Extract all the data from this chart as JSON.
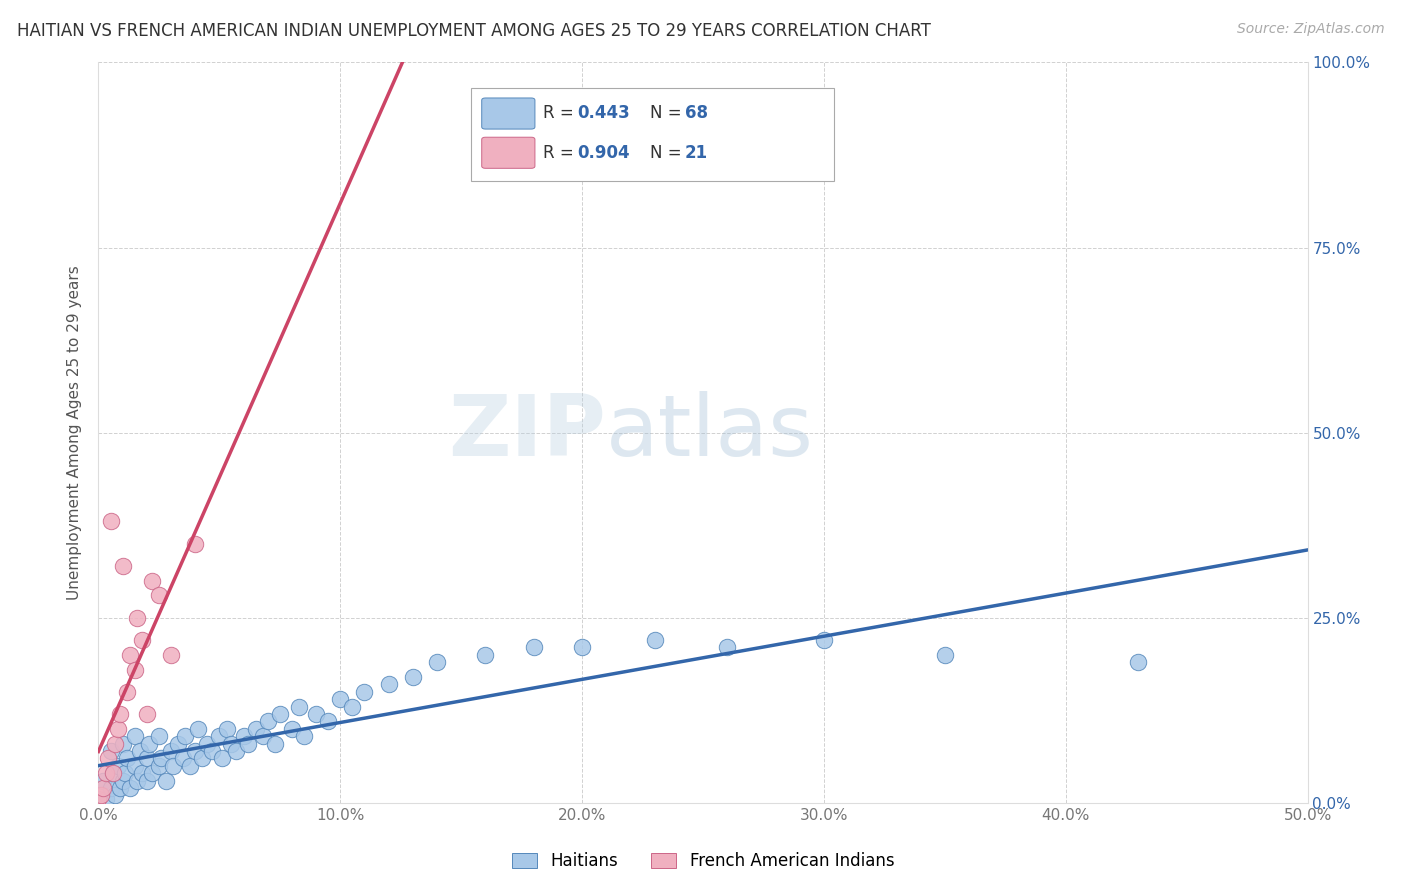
{
  "title": "HAITIAN VS FRENCH AMERICAN INDIAN UNEMPLOYMENT AMONG AGES 25 TO 29 YEARS CORRELATION CHART",
  "source": "Source: ZipAtlas.com",
  "ylabel": "Unemployment Among Ages 25 to 29 years",
  "xlim": [
    0.0,
    0.5
  ],
  "ylim": [
    0.0,
    1.0
  ],
  "xticks": [
    0.0,
    0.1,
    0.2,
    0.3,
    0.4,
    0.5
  ],
  "xticklabels": [
    "0.0%",
    "10.0%",
    "20.0%",
    "30.0%",
    "40.0%",
    "50.0%"
  ],
  "yticks": [
    0.0,
    0.25,
    0.5,
    0.75,
    1.0
  ],
  "yticklabels_right": [
    "0.0%",
    "25.0%",
    "50.0%",
    "75.0%",
    "100.0%"
  ],
  "grid_color": "#cccccc",
  "background_color": "#ffffff",
  "watermark_zip": "ZIP",
  "watermark_atlas": "atlas",
  "R1": 0.443,
  "N1": 68,
  "R2": 0.904,
  "N2": 21,
  "series1_fill": "#a8c8e8",
  "series1_edge": "#5588bb",
  "series1_line": "#3366aa",
  "series1_label": "Haitians",
  "series2_fill": "#f0b0c0",
  "series2_edge": "#cc6688",
  "series2_line": "#cc4466",
  "series2_label": "French American Indians",
  "legend_text_color": "#333333",
  "legend_val_color": "#3366aa",
  "haitians_x": [
    0.002,
    0.003,
    0.005,
    0.005,
    0.006,
    0.007,
    0.008,
    0.009,
    0.01,
    0.01,
    0.011,
    0.012,
    0.013,
    0.015,
    0.015,
    0.016,
    0.017,
    0.018,
    0.02,
    0.02,
    0.021,
    0.022,
    0.025,
    0.025,
    0.026,
    0.028,
    0.03,
    0.031,
    0.033,
    0.035,
    0.036,
    0.038,
    0.04,
    0.041,
    0.043,
    0.045,
    0.047,
    0.05,
    0.051,
    0.053,
    0.055,
    0.057,
    0.06,
    0.062,
    0.065,
    0.068,
    0.07,
    0.073,
    0.075,
    0.08,
    0.083,
    0.085,
    0.09,
    0.095,
    0.1,
    0.105,
    0.11,
    0.12,
    0.13,
    0.14,
    0.16,
    0.18,
    0.2,
    0.23,
    0.26,
    0.3,
    0.35,
    0.43
  ],
  "haitians_y": [
    0.03,
    0.005,
    0.02,
    0.07,
    0.04,
    0.01,
    0.05,
    0.02,
    0.03,
    0.08,
    0.04,
    0.06,
    0.02,
    0.05,
    0.09,
    0.03,
    0.07,
    0.04,
    0.03,
    0.06,
    0.08,
    0.04,
    0.05,
    0.09,
    0.06,
    0.03,
    0.07,
    0.05,
    0.08,
    0.06,
    0.09,
    0.05,
    0.07,
    0.1,
    0.06,
    0.08,
    0.07,
    0.09,
    0.06,
    0.1,
    0.08,
    0.07,
    0.09,
    0.08,
    0.1,
    0.09,
    0.11,
    0.08,
    0.12,
    0.1,
    0.13,
    0.09,
    0.12,
    0.11,
    0.14,
    0.13,
    0.15,
    0.16,
    0.17,
    0.19,
    0.2,
    0.21,
    0.21,
    0.22,
    0.21,
    0.22,
    0.2,
    0.19
  ],
  "fai_x": [
    0.0,
    0.001,
    0.002,
    0.003,
    0.004,
    0.005,
    0.006,
    0.007,
    0.008,
    0.009,
    0.01,
    0.012,
    0.013,
    0.015,
    0.016,
    0.018,
    0.02,
    0.022,
    0.025,
    0.03,
    0.04
  ],
  "fai_y": [
    0.005,
    0.01,
    0.02,
    0.04,
    0.06,
    0.38,
    0.04,
    0.08,
    0.1,
    0.12,
    0.32,
    0.15,
    0.2,
    0.18,
    0.25,
    0.22,
    0.12,
    0.3,
    0.28,
    0.2,
    0.35
  ]
}
